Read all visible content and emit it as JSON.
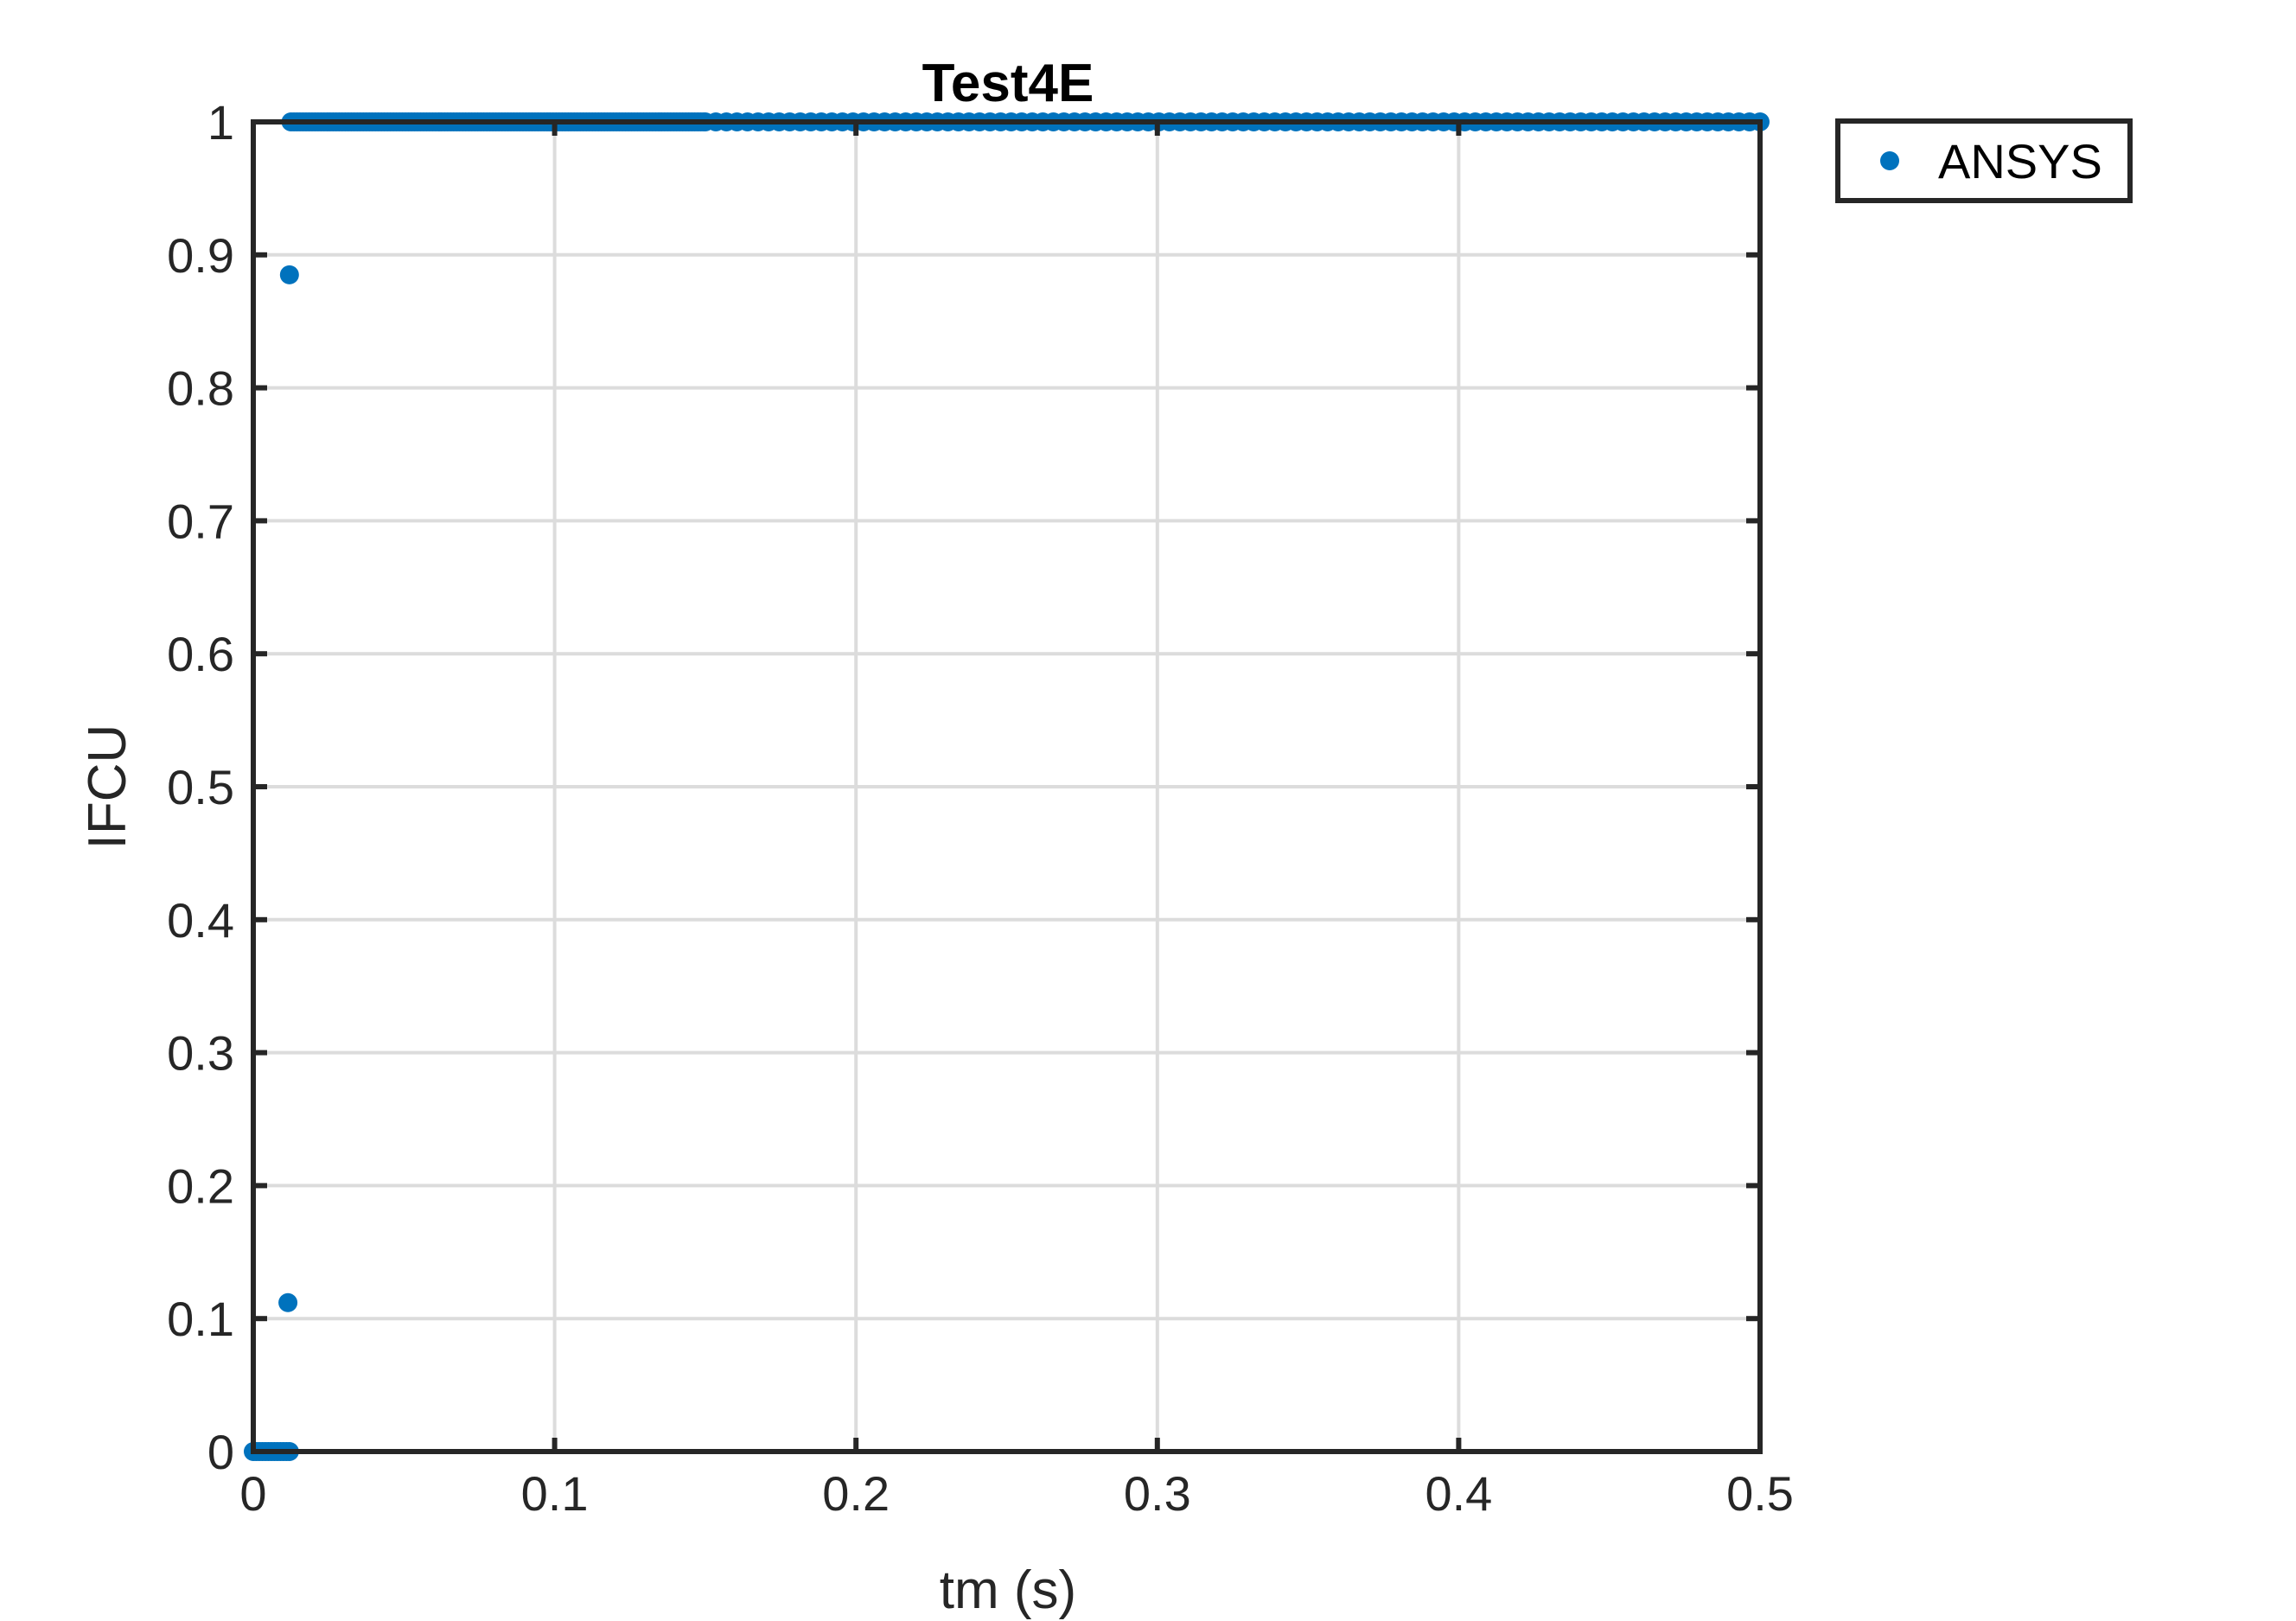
{
  "chart_data": {
    "type": "scatter",
    "title": "Test4E",
    "xlabel": "tm (s)",
    "ylabel": "IFCU",
    "xlim": [
      0,
      0.5
    ],
    "ylim": [
      0,
      1
    ],
    "xticks": [
      0,
      0.1,
      0.2,
      0.3,
      0.4,
      0.5
    ],
    "xtick_labels": [
      "0",
      "0.1",
      "0.2",
      "0.3",
      "0.4",
      "0.5"
    ],
    "yticks": [
      0,
      0.1,
      0.2,
      0.3,
      0.4,
      0.5,
      0.6,
      0.7,
      0.8,
      0.9,
      1
    ],
    "ytick_labels": [
      "0",
      "0.1",
      "0.2",
      "0.3",
      "0.4",
      "0.5",
      "0.6",
      "0.7",
      "0.8",
      "0.9",
      "1"
    ],
    "grid": true,
    "legend_position": "outside-top-right",
    "series": [
      {
        "name": "ANSYS",
        "color": "#0072BD",
        "points": [
          {
            "x": 0.0,
            "y": 0
          },
          {
            "x": 0.001,
            "y": 0
          },
          {
            "x": 0.002,
            "y": 0
          },
          {
            "x": 0.003,
            "y": 0
          },
          {
            "x": 0.004,
            "y": 0
          },
          {
            "x": 0.005,
            "y": 0
          },
          {
            "x": 0.006,
            "y": 0
          },
          {
            "x": 0.007,
            "y": 0
          },
          {
            "x": 0.008,
            "y": 0
          },
          {
            "x": 0.009,
            "y": 0
          },
          {
            "x": 0.01,
            "y": 0
          },
          {
            "x": 0.011,
            "y": 0
          },
          {
            "x": 0.012,
            "y": 0
          },
          {
            "x": 0.0115,
            "y": 0.112
          },
          {
            "x": 0.012,
            "y": 0.885
          }
        ],
        "dense_runs": [
          {
            "x_start": 0.0125,
            "x_end": 0.15,
            "step": 0.001,
            "y": 1
          },
          {
            "x_start": 0.15,
            "x_end": 0.5,
            "step": 0.0035,
            "y": 1
          }
        ]
      }
    ]
  }
}
